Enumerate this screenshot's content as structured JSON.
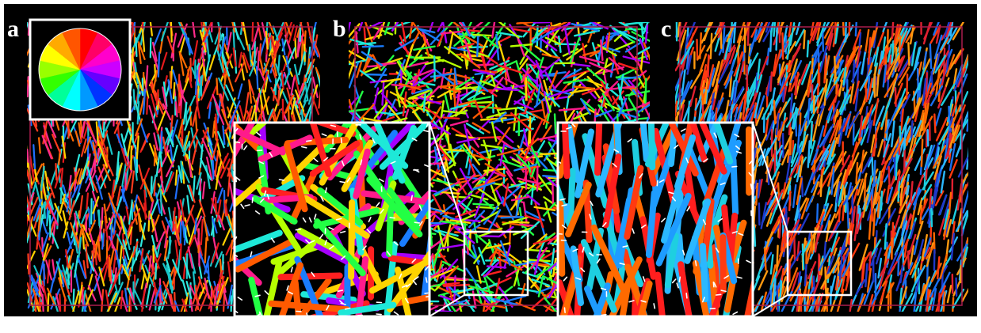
{
  "figure": {
    "background": "#000000",
    "box_color": "#aa1d4d",
    "inset_border": "#ffffff",
    "panels": [
      {
        "label": "a",
        "palette": [
          "#e41a1c",
          "#ff3b1e",
          "#2ee8df",
          "#19c4c8",
          "#ff6a00",
          "#2070ff",
          "#ffd000",
          "#ff2b8a"
        ]
      },
      {
        "label": "b",
        "palette": [
          "#ff1a8c",
          "#ff5a00",
          "#ffd400",
          "#b6ff00",
          "#22ff44",
          "#1ee8d8",
          "#1a7dff",
          "#a600ff",
          "#ff2020"
        ]
      },
      {
        "label": "c",
        "palette": [
          "#ff3a10",
          "#ff6a00",
          "#ff9a10",
          "#1ecfe0",
          "#2bb8ff",
          "#1a6ff0",
          "#2038c8",
          "#e02030"
        ]
      }
    ],
    "color_wheel": [
      "#ff0000",
      "#ff0066",
      "#ff00cc",
      "#cc00ff",
      "#6600ff",
      "#0033ff",
      "#0099ff",
      "#00ffff",
      "#00ff99",
      "#33ff00",
      "#99ff00",
      "#ffff00",
      "#ffaa00",
      "#ff5500"
    ]
  }
}
